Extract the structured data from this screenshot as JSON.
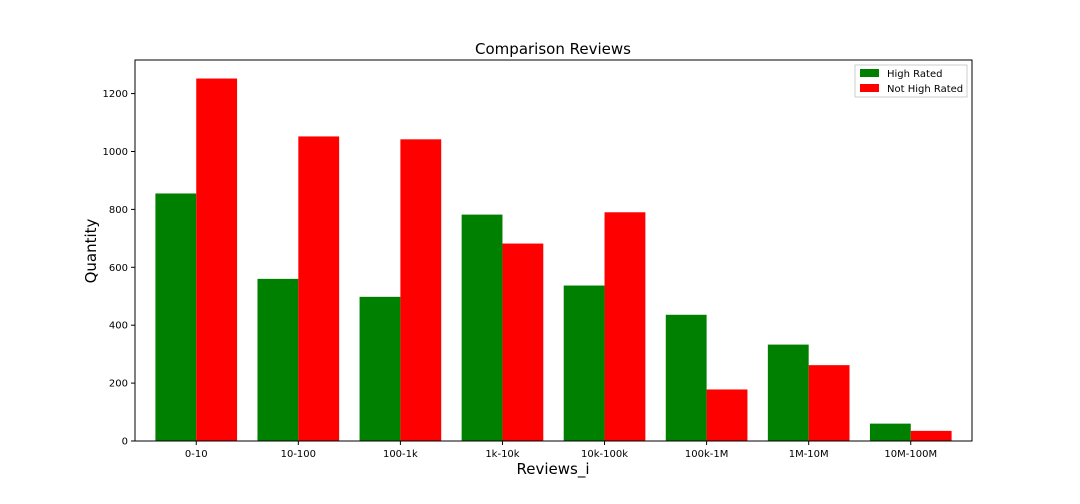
{
  "chart_data": {
    "type": "bar",
    "title": "Comparison Reviews",
    "xlabel": "Reviews_i",
    "ylabel": "Quantity",
    "categories": [
      "0-10",
      "10-100",
      "100-1k",
      "1k-10k",
      "10k-100k",
      "100k-1M",
      "1M-10M",
      "10M-100M"
    ],
    "series": [
      {
        "name": "High Rated",
        "color": "#008000",
        "values": [
          855,
          560,
          498,
          782,
          537,
          436,
          333,
          60
        ]
      },
      {
        "name": "Not High Rated",
        "color": "#ff0000",
        "values": [
          1252,
          1052,
          1042,
          682,
          790,
          178,
          262,
          35
        ]
      }
    ],
    "ylim": [
      0,
      1316
    ],
    "yticks": [
      0,
      200,
      400,
      600,
      800,
      1000,
      1200
    ],
    "grid": false,
    "legend_position": "top-right"
  }
}
